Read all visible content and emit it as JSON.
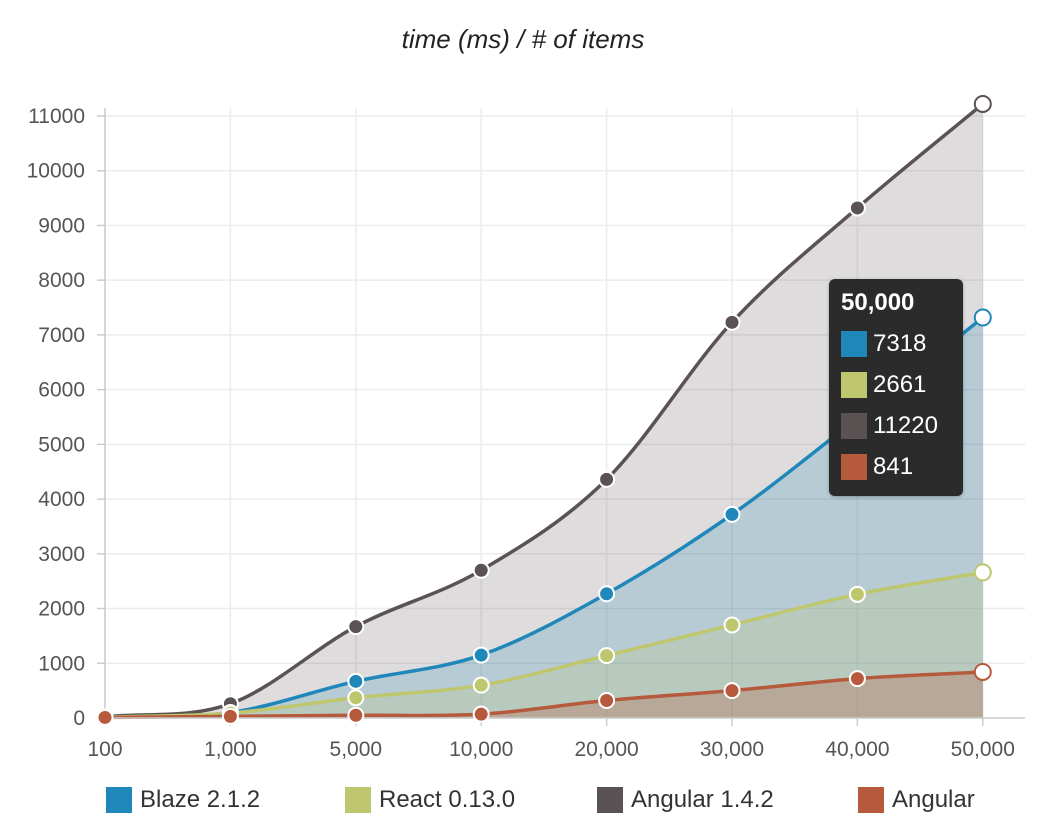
{
  "chart_data": {
    "type": "area",
    "title": "time (ms) / # of items",
    "categories": [
      "100",
      "1,000",
      "5,000",
      "10,000",
      "20,000",
      "30,000",
      "40,000",
      "50,000"
    ],
    "y_ticks": [
      "0",
      "1000",
      "2000",
      "3000",
      "4000",
      "5000",
      "6000",
      "7000",
      "8000",
      "9000",
      "10000",
      "11000"
    ],
    "ylim": [
      0,
      11000
    ],
    "grid": true,
    "legend_position": "bottom",
    "series": [
      {
        "name": "Angular 1.4.2",
        "color": "#5a5253",
        "values": [
          20,
          260,
          1670,
          2700,
          4360,
          7230,
          9320,
          11220
        ]
      },
      {
        "name": "Blaze 2.1.2",
        "color": "#1f87b9",
        "values": [
          20,
          100,
          670,
          1150,
          2270,
          3720,
          5480,
          7318
        ]
      },
      {
        "name": "React 0.13.0",
        "color": "#bfc76e",
        "values": [
          15,
          90,
          370,
          600,
          1140,
          1700,
          2260,
          2661
        ]
      },
      {
        "name": "Angular",
        "color": "#b65a3e",
        "values": [
          10,
          30,
          50,
          70,
          320,
          500,
          720,
          841
        ]
      }
    ],
    "legend": [
      {
        "name": "Blaze 2.1.2",
        "color": "#1f87b9"
      },
      {
        "name": "React 0.13.0",
        "color": "#bfc76e"
      },
      {
        "name": "Angular 1.4.2",
        "color": "#5a5253"
      },
      {
        "name": "Angular",
        "color": "#b65a3e"
      }
    ],
    "tooltip": {
      "title": "50,000",
      "rows": [
        {
          "value": "7318",
          "color": "#1f87b9"
        },
        {
          "value": "2661",
          "color": "#bfc76e"
        },
        {
          "value": "11220",
          "color": "#5a5253"
        },
        {
          "value": "841",
          "color": "#b65a3e"
        }
      ]
    }
  }
}
